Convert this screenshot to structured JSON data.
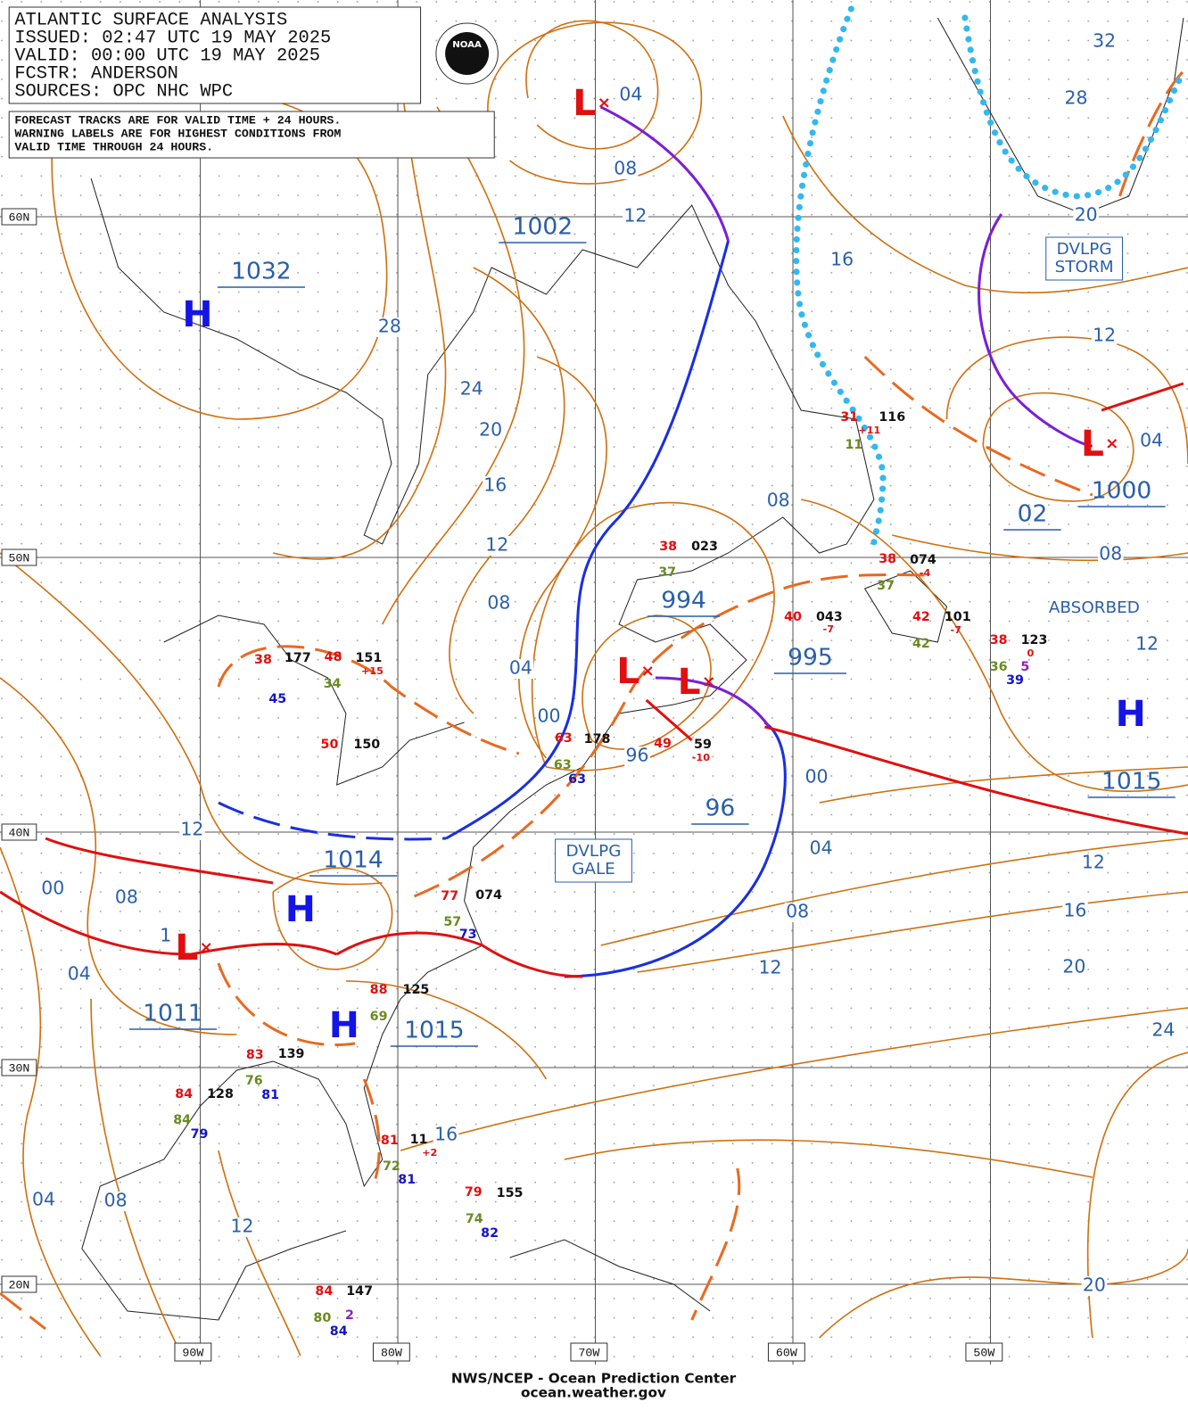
{
  "header": {
    "lines": [
      "ATLANTIC SURFACE ANALYSIS",
      "ISSUED: 02:47 UTC 19 MAY 2025",
      "VALID:  00:00 UTC 19 MAY 2025",
      "FCSTR:  ANDERSON",
      "SOURCES: OPC NHC WPC"
    ],
    "logo": "NOAA"
  },
  "note": [
    "FORECAST TRACKS ARE FOR VALID TIME + 24 HOURS.",
    "WARNING LABELS ARE FOR HIGHEST CONDITIONS FROM",
    "VALID TIME THROUGH 24 HOURS."
  ],
  "latitudes": [
    "60N",
    "50N",
    "40N",
    "30N",
    "20N"
  ],
  "longitudes": [
    "90W",
    "80W",
    "70W",
    "60W",
    "50W"
  ],
  "isobar_labels": [
    "04",
    "08",
    "12",
    "28",
    "24",
    "20",
    "16",
    "12",
    "08",
    "04",
    "00",
    "96",
    "16",
    "12",
    "04",
    "08",
    "08",
    "12",
    "00",
    "04",
    "08",
    "12",
    "12",
    "16",
    "20",
    "24",
    "20",
    "32",
    "28",
    "20",
    "12",
    "00",
    "08",
    "1",
    "04",
    "16",
    "04",
    "08",
    "12"
  ],
  "pressures": [
    "1002",
    "1032",
    "994",
    "995",
    "96",
    "1014",
    "1011",
    "1015",
    "1000",
    "02",
    "1015"
  ],
  "centers": [
    "H",
    "H",
    "H",
    "H",
    "L",
    "L",
    "L",
    "L",
    "L"
  ],
  "warnings": [
    [
      "DVLPG",
      "STORM"
    ],
    [
      "DVLPG",
      "GALE"
    ],
    [
      "ABSORBED"
    ]
  ],
  "stations": [
    "116",
    "31",
    "+11",
    "11",
    "38",
    "023",
    "37",
    "38",
    "074",
    "37",
    "-4",
    "40",
    "043",
    "-7",
    "42",
    "101",
    "-7",
    "42",
    "38",
    "123",
    "0",
    "36",
    "5",
    "39",
    "38",
    "177",
    "45",
    "48",
    "151",
    "+15",
    "34",
    "50",
    "150",
    "63",
    "178",
    "63",
    "63",
    "49",
    "59",
    "-10",
    "77",
    "074",
    "57",
    "73",
    "88",
    "125",
    "69",
    "83",
    "139",
    "76",
    "81",
    "84",
    "128",
    "84",
    "79",
    "81",
    "11",
    "+2",
    "72",
    "81",
    "79",
    "155",
    "74",
    "82",
    "84",
    "147",
    "80",
    "2",
    "84"
  ],
  "footer": [
    "NWS/NCEP - Ocean Prediction Center",
    "ocean.weather.gov"
  ]
}
